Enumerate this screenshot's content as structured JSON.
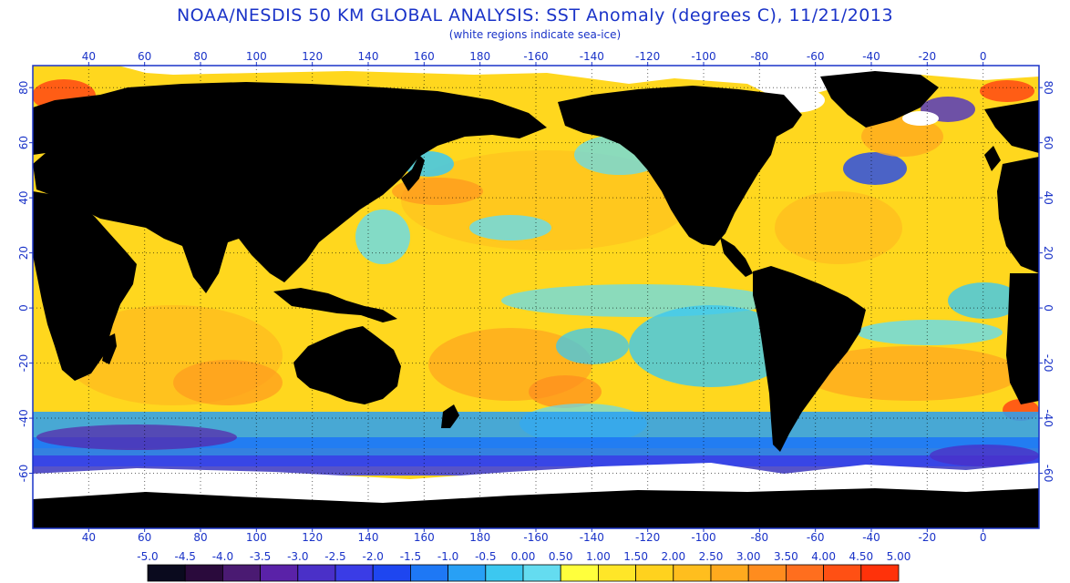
{
  "header": {
    "title": "NOAA/NESDIS 50 KM GLOBAL ANALYSIS: SST Anomaly (degrees C), 11/21/2013",
    "subtitle": "(white regions indicate sea-ice)"
  },
  "map": {
    "lon_ticks": [
      "40",
      "60",
      "80",
      "100",
      "120",
      "140",
      "160",
      "180",
      "-160",
      "-140",
      "-120",
      "-100",
      "-80",
      "-60",
      "-40",
      "-20",
      "0"
    ],
    "lat_ticks": [
      "80",
      "60",
      "40",
      "20",
      "0",
      "-20",
      "-40",
      "-60"
    ],
    "lon_range": [
      20,
      380
    ],
    "lat_range": [
      -80,
      88
    ],
    "colors": {
      "land": "#000000",
      "sea_ice": "#ffffff",
      "axis": "#1a33c8",
      "grid": "#000000"
    }
  },
  "colorbar": {
    "labels": [
      "-5.0",
      "-4.5",
      "-4.0",
      "-3.5",
      "-3.0",
      "-2.5",
      "-2.0",
      "-1.5",
      "-1.0",
      "-0.5",
      "0.00",
      "0.50",
      "1.00",
      "1.50",
      "2.00",
      "2.50",
      "3.00",
      "3.50",
      "4.00",
      "4.50",
      "5.00"
    ],
    "colors": [
      "#0a0a1e",
      "#2a0a3c",
      "#4a1a72",
      "#5a22a8",
      "#4a30c8",
      "#3a3ce6",
      "#1e46f0",
      "#1e78f5",
      "#28a0f5",
      "#3cc8f0",
      "#64dcf0",
      "#ffff3c",
      "#ffe628",
      "#ffd21e",
      "#ffbe1e",
      "#ffaa1e",
      "#ff8c1e",
      "#ff6e1e",
      "#ff5014",
      "#ff320a"
    ]
  }
}
